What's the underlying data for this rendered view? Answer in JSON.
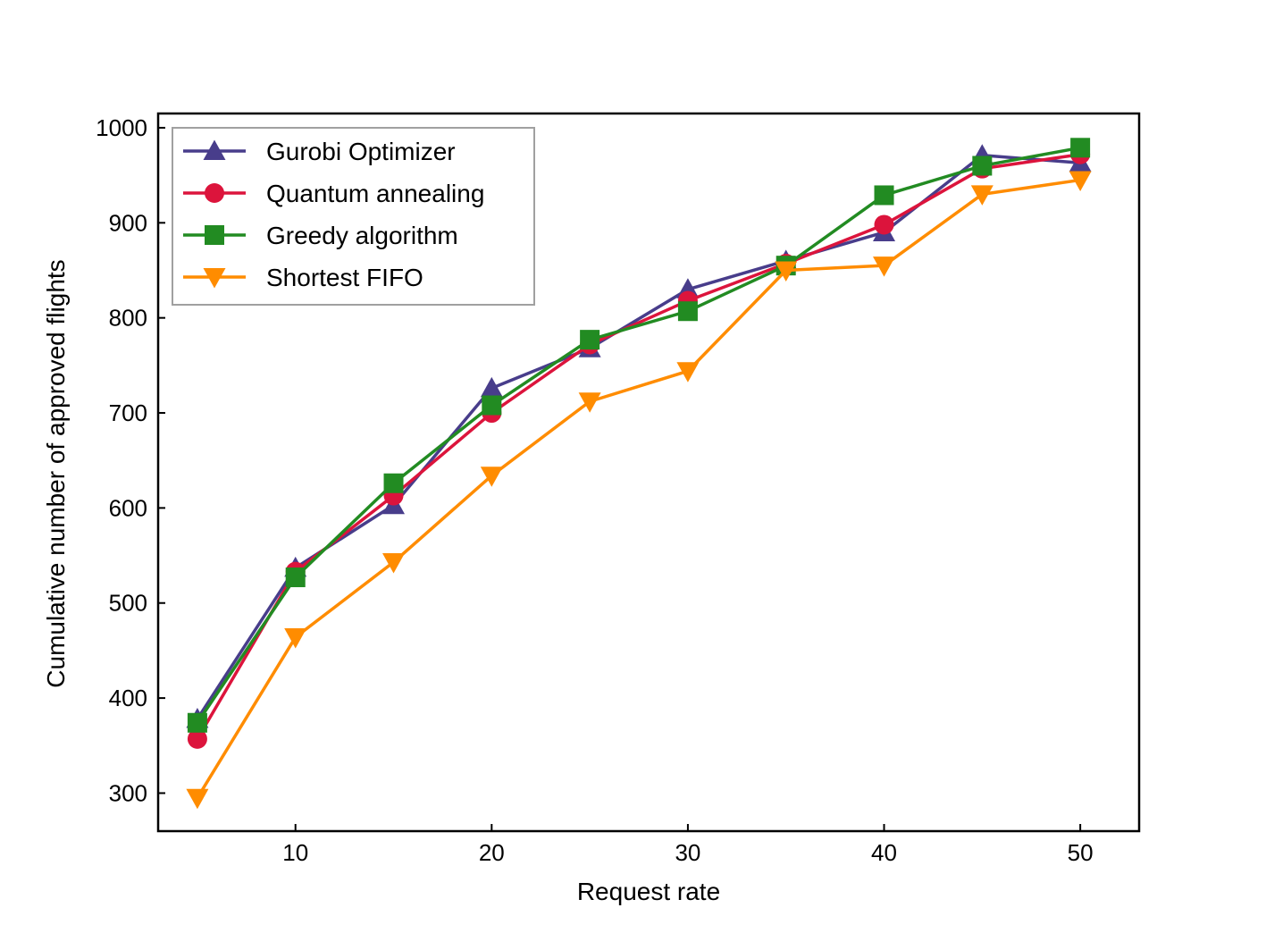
{
  "chart_data": {
    "type": "line",
    "title": "",
    "xlabel": "Request rate",
    "ylabel": "Cumulative number of approved flights",
    "x": [
      5,
      10,
      15,
      20,
      25,
      30,
      35,
      40,
      45,
      50
    ],
    "xlim": [
      3,
      53
    ],
    "ylim": [
      260,
      1015
    ],
    "xticks": [
      10,
      20,
      30,
      40,
      50
    ],
    "yticks": [
      300,
      400,
      500,
      600,
      700,
      800,
      900,
      1000
    ],
    "grid": false,
    "legend_position": "top-left",
    "series": [
      {
        "name": "Gurobi Optimizer",
        "color": "#483d8b",
        "marker": "triangle-up",
        "values": [
          378,
          537,
          603,
          726,
          768,
          830,
          860,
          890,
          971,
          963
        ]
      },
      {
        "name": "Quantum annealing",
        "color": "#dc143c",
        "marker": "circle",
        "values": [
          357,
          533,
          613,
          700,
          772,
          818,
          857,
          898,
          957,
          972
        ]
      },
      {
        "name": "Greedy algorithm",
        "color": "#228b22",
        "marker": "square",
        "values": [
          374,
          527,
          626,
          708,
          777,
          807,
          855,
          929,
          960,
          979
        ]
      },
      {
        "name": "Shortest FIFO",
        "color": "#ff8c00",
        "marker": "triangle-down",
        "values": [
          295,
          464,
          543,
          634,
          712,
          744,
          850,
          855,
          930,
          945
        ]
      }
    ]
  }
}
